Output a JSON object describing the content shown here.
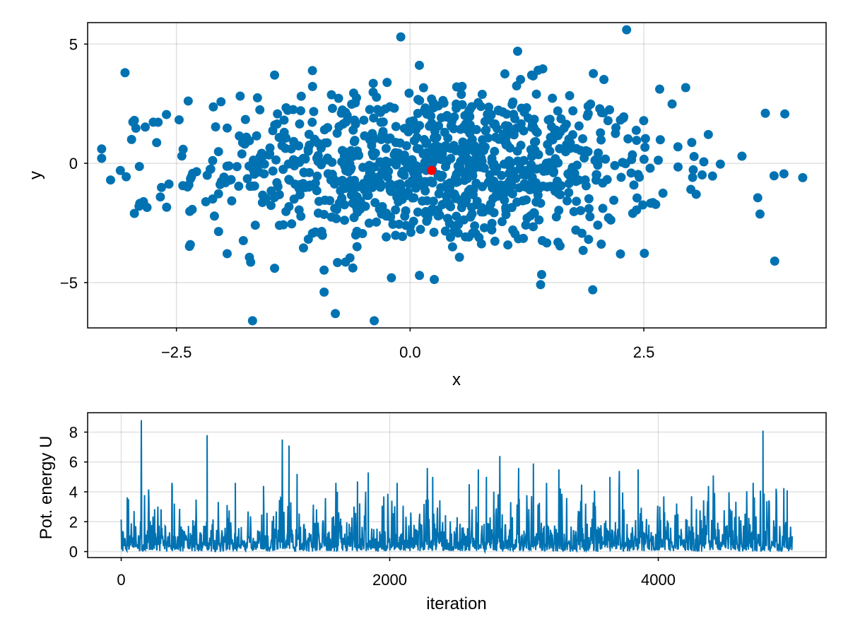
{
  "chart_data": [
    {
      "type": "scatter",
      "xlabel": "x",
      "ylabel": "y",
      "xlim": [
        -3.45,
        4.45
      ],
      "ylim": [
        -6.9,
        5.9
      ],
      "xticks": [
        -2.5,
        0.0,
        2.5
      ],
      "xtick_labels": [
        "−2.5",
        "0.0",
        "2.5"
      ],
      "yticks": [
        -5,
        0,
        5
      ],
      "ytick_labels": [
        "−5",
        "0",
        "5"
      ],
      "grid": true,
      "sample_count_approx": 1000,
      "series": [
        {
          "color": "#0072b2",
          "marker": "circle",
          "values_note_outliers": [
            [
              -3.05,
              3.8
            ],
            [
              -0.1,
              5.3
            ],
            [
              1.15,
              4.7
            ],
            [
              -0.8,
              -6.3
            ],
            [
              -0.92,
              -5.4
            ],
            [
              3.9,
              -4.1
            ],
            [
              4.2,
              -0.6
            ],
            [
              -3.1,
              -0.3
            ],
            [
              -2.95,
              1.8
            ],
            [
              -2.98,
              1.0
            ],
            [
              -2.9,
              -1.8
            ],
            [
              -2.95,
              -2.1
            ],
            [
              3.8,
              2.1
            ],
            [
              -1.45,
              -4.4
            ],
            [
              -1.45,
              3.7
            ],
            [
              0.1,
              -4.7
            ],
            [
              -0.2,
              -4.8
            ],
            [
              2.25,
              -3.8
            ],
            [
              1.3,
              3.7
            ],
            [
              3.55,
              0.3
            ]
          ]
        },
        {
          "color": "#ff0000",
          "marker": "circle",
          "points": [
            [
              0.23,
              -0.3
            ]
          ]
        }
      ]
    },
    {
      "type": "line",
      "xlabel": "iteration",
      "ylabel": "Pot. energy U",
      "xlim": [
        -250,
        5250
      ],
      "ylim": [
        -0.4,
        9.3
      ],
      "xticks": [
        0,
        2000,
        4000
      ],
      "xtick_labels": [
        "0",
        "2000",
        "4000"
      ],
      "yticks": [
        0,
        2,
        4,
        6,
        8
      ],
      "ytick_labels": [
        "0",
        "2",
        "4",
        "6",
        "8"
      ],
      "grid": true,
      "n_iterations": 5000,
      "series": [
        {
          "color": "#0072b2",
          "peaks": [
            [
              150,
              8.8
            ],
            [
              640,
              7.8
            ],
            [
              1060,
              4.4
            ],
            [
              1200,
              7.5
            ],
            [
              1250,
              7.1
            ],
            [
              1310,
              5.2
            ],
            [
              1610,
              4.0
            ],
            [
              1840,
              5.3
            ],
            [
              2280,
              5.6
            ],
            [
              2320,
              5.0
            ],
            [
              2660,
              5.5
            ],
            [
              2820,
              6.4
            ],
            [
              2960,
              5.6
            ],
            [
              3070,
              5.9
            ],
            [
              3260,
              5.5
            ],
            [
              3640,
              5.0
            ],
            [
              3710,
              5.4
            ],
            [
              3850,
              5.5
            ],
            [
              4410,
              5.1
            ],
            [
              4780,
              8.1
            ],
            [
              4960,
              4.1
            ],
            [
              380,
              4.4
            ],
            [
              850,
              4.6
            ],
            [
              1760,
              4.7
            ],
            [
              2720,
              5.0
            ]
          ]
        }
      ]
    }
  ]
}
